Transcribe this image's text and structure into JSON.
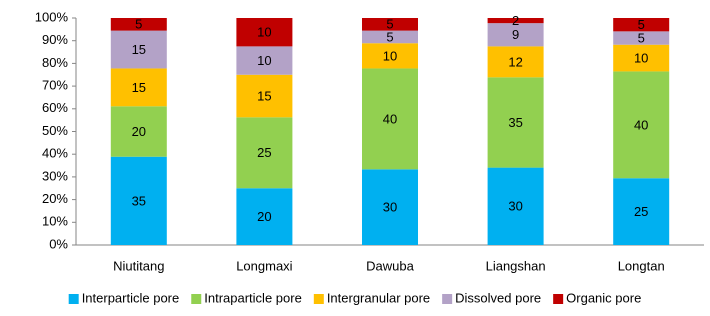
{
  "chart_data": {
    "type": "bar",
    "stacking": "percent",
    "categories": [
      "Niutitang",
      "Longmaxi",
      "Dawuba",
      "Liangshan",
      "Longtan"
    ],
    "series": [
      {
        "name": "Interparticle pore",
        "color": "#00b0f0",
        "values": [
          35,
          20,
          30,
          30,
          25
        ]
      },
      {
        "name": "Intraparticle pore",
        "color": "#92d050",
        "values": [
          20,
          25,
          40,
          35,
          40
        ]
      },
      {
        "name": "Intergranular pore",
        "color": "#ffc000",
        "values": [
          15,
          15,
          10,
          12,
          10
        ]
      },
      {
        "name": "Dissolved pore",
        "color": "#b3a2c7",
        "values": [
          15,
          10,
          5,
          9,
          5
        ]
      },
      {
        "name": "Organic pore",
        "color": "#c00000",
        "values": [
          5,
          10,
          5,
          2,
          5
        ]
      }
    ],
    "ylim": [
      0,
      100
    ],
    "yticks": [
      {
        "value": 0,
        "label": "0%"
      },
      {
        "value": 10,
        "label": "10%"
      },
      {
        "value": 20,
        "label": "20%"
      },
      {
        "value": 30,
        "label": "30%"
      },
      {
        "value": 40,
        "label": "40%"
      },
      {
        "value": 50,
        "label": "50%"
      },
      {
        "value": 60,
        "label": "60%"
      },
      {
        "value": 70,
        "label": "70%"
      },
      {
        "value": 80,
        "label": "80%"
      },
      {
        "value": 90,
        "label": "90%"
      },
      {
        "value": 100,
        "label": "100%"
      }
    ],
    "grid": false,
    "legend": "bottom"
  }
}
